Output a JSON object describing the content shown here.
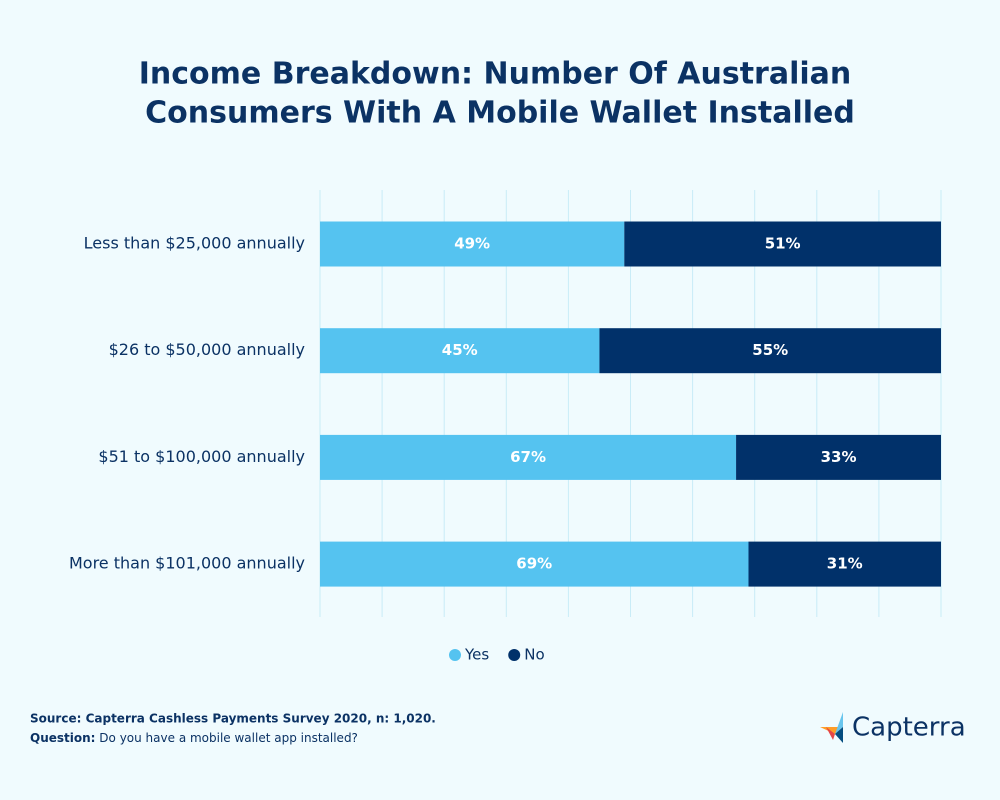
{
  "chart_data": {
    "type": "stacked_bar_horizontal",
    "title": [
      "Income Breakdown: Number Of Australian",
      "Consumers With A Mobile Wallet Installed"
    ],
    "categories": [
      "Less than $25,000 annually",
      "$26 to $50,000 annually",
      "$51 to $100,000 annually",
      "More than $101,000 annually"
    ],
    "series": [
      {
        "name": "Yes",
        "color": "#55c3f0",
        "values": [
          49,
          45,
          67,
          69
        ],
        "value_labels": [
          "49%",
          "45%",
          "67%",
          "69%"
        ]
      },
      {
        "name": "No",
        "color": "#01316a",
        "values": [
          51,
          55,
          33,
          31
        ],
        "value_labels": [
          "51%",
          "55%",
          "33%",
          "31%"
        ]
      }
    ],
    "xlim": [
      0,
      100
    ],
    "xticks": [
      0,
      10,
      20,
      30,
      40,
      50,
      60,
      70,
      80,
      90,
      100
    ],
    "grid": true,
    "legend": "bottom"
  },
  "footer": {
    "source": "Source: Capterra Cashless Payments Survey 2020, n: 1,020.",
    "question_label": "Question:",
    "question": "Do you have a mobile wallet app installed?"
  },
  "logo": {
    "text": "Capterra"
  }
}
